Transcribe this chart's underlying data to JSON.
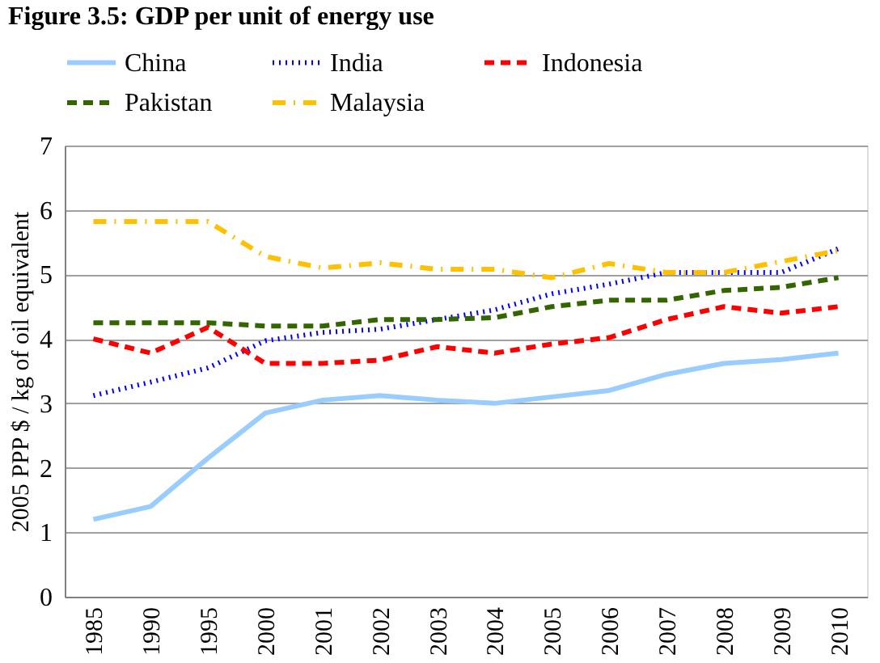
{
  "chart_data": {
    "type": "line",
    "title": "Figure 3.5: GDP per unit of energy use",
    "ylabel": "2005 PPP $ / kg of oil equivalent",
    "categories": [
      "1985",
      "1990",
      "1995",
      "2000",
      "2001",
      "2002",
      "2003",
      "2004",
      "2005",
      "2006",
      "2007",
      "2008",
      "2009",
      "2010"
    ],
    "series": [
      {
        "name": "China",
        "color": "#99ccff",
        "line_style": "solid",
        "values": [
          1.2,
          1.4,
          2.15,
          2.85,
          3.05,
          3.12,
          3.05,
          3.0,
          3.1,
          3.2,
          3.45,
          3.62,
          3.68,
          3.78
        ]
      },
      {
        "name": "India",
        "color": "#0000ff",
        "line_style": "dotted",
        "values": [
          3.12,
          3.33,
          3.55,
          3.97,
          4.1,
          4.15,
          4.3,
          4.45,
          4.7,
          4.85,
          5.03,
          5.03,
          5.03,
          5.4
        ]
      },
      {
        "name": "Indonesia",
        "color": "#ff0000",
        "line_style": "dashed",
        "values": [
          4.0,
          3.78,
          4.18,
          3.62,
          3.62,
          3.67,
          3.88,
          3.78,
          3.92,
          4.02,
          4.3,
          4.5,
          4.4,
          4.5
        ]
      },
      {
        "name": "Pakistan",
        "color": "#336600",
        "line_style": "dashed",
        "values": [
          4.25,
          4.25,
          4.25,
          4.2,
          4.2,
          4.3,
          4.3,
          4.33,
          4.5,
          4.6,
          4.6,
          4.75,
          4.8,
          4.95
        ]
      },
      {
        "name": "Malaysia",
        "color": "#ffc000",
        "line_style": "dashdot",
        "values": [
          5.82,
          5.82,
          5.82,
          5.28,
          5.1,
          5.18,
          5.08,
          5.08,
          4.95,
          5.17,
          5.03,
          5.03,
          5.2,
          5.37
        ]
      }
    ],
    "ylim": [
      0,
      7
    ],
    "yticks": [
      0,
      1,
      2,
      3,
      4,
      5,
      6,
      7
    ],
    "grid": "y",
    "legend": "top",
    "marker": "none"
  }
}
